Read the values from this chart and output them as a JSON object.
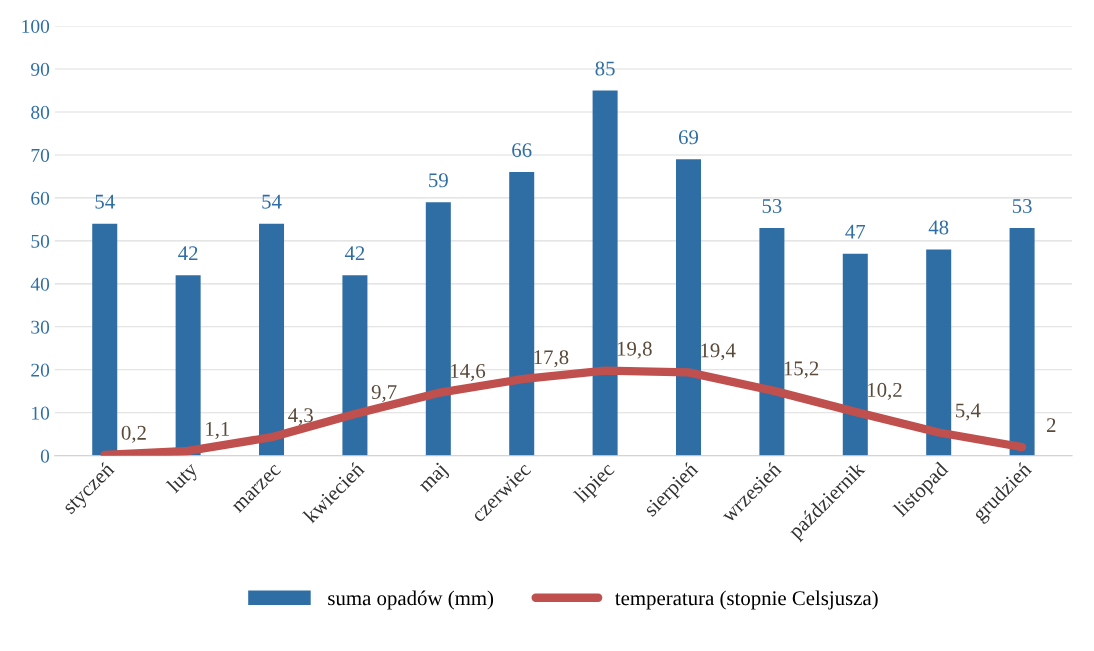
{
  "chart_data": {
    "type": "bar",
    "categories": [
      "styczeń",
      "luty",
      "marzec",
      "kwiecień",
      "maj",
      "czerwiec",
      "lipiec",
      "sierpień",
      "wrzesień",
      "październik",
      "listopad",
      "grudzień"
    ],
    "series": [
      {
        "name": "suma opadów (mm)",
        "color": "#2f6ea5",
        "values": [
          54,
          42,
          54,
          42,
          59,
          66,
          85,
          69,
          53,
          47,
          48,
          53
        ]
      },
      {
        "name": "temperatura (stopnie Celsjusza)",
        "type": "line",
        "color": "#c0504d",
        "values": [
          0.2,
          1.1,
          4.3,
          9.7,
          14.6,
          17.8,
          19.8,
          19.4,
          15.2,
          10.2,
          5.4,
          2
        ],
        "value_labels": [
          "0,2",
          "1,1",
          "4,3",
          "9,7",
          "14,6",
          "17,8",
          "19,8",
          "19,4",
          "15,2",
          "10,2",
          "5,4",
          "2"
        ]
      }
    ],
    "ylim": [
      0,
      100
    ],
    "yticks": [
      0,
      10,
      20,
      30,
      40,
      50,
      60,
      70,
      80,
      90,
      100
    ],
    "grid": "y",
    "legend": "bottom",
    "data_labels": true,
    "line_style": "solid",
    "marker": "none"
  }
}
